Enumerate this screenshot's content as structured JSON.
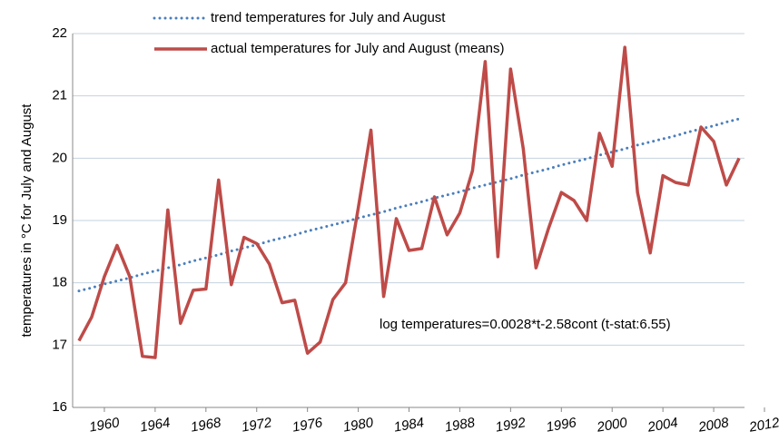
{
  "chart_data": {
    "type": "line",
    "y_label": "temperatures in °C for July and August",
    "annotation": "log temperatures=0.0028*t-2.58cont (t-stat:6.55)",
    "x": [
      1958,
      1959,
      1960,
      1961,
      1962,
      1963,
      1964,
      1965,
      1966,
      1967,
      1968,
      1969,
      1970,
      1971,
      1972,
      1973,
      1974,
      1975,
      1976,
      1977,
      1978,
      1979,
      1980,
      1981,
      1982,
      1983,
      1984,
      1985,
      1986,
      1987,
      1988,
      1989,
      1990,
      1991,
      1992,
      1993,
      1994,
      1995,
      1996,
      1997,
      1998,
      1999,
      2000,
      2001,
      2002,
      2003,
      2004,
      2005,
      2006,
      2007,
      2008,
      2009,
      2010
    ],
    "series": [
      {
        "name": "trend temperatures for July and August",
        "color": "#4a7ebb",
        "style": "dotted",
        "values": [
          17.87,
          17.92,
          17.98,
          18.03,
          18.08,
          18.14,
          18.19,
          18.24,
          18.29,
          18.35,
          18.4,
          18.45,
          18.51,
          18.56,
          18.61,
          18.67,
          18.72,
          18.77,
          18.83,
          18.88,
          18.93,
          18.98,
          19.04,
          19.09,
          19.14,
          19.2,
          19.25,
          19.3,
          19.36,
          19.41,
          19.46,
          19.52,
          19.57,
          19.62,
          19.67,
          19.73,
          19.78,
          19.83,
          19.89,
          19.94,
          19.99,
          20.05,
          20.1,
          20.15,
          20.21,
          20.26,
          20.31,
          20.36,
          20.42,
          20.47,
          20.52,
          20.58,
          20.63
        ]
      },
      {
        "name": "actual temperatures for July and August (means)",
        "color": "#be4b48",
        "style": "solid",
        "values": [
          17.07,
          17.45,
          18.1,
          18.6,
          18.1,
          16.82,
          16.8,
          19.17,
          17.35,
          17.88,
          17.9,
          19.65,
          17.97,
          18.73,
          18.63,
          18.3,
          17.68,
          17.72,
          16.87,
          17.05,
          17.73,
          18.0,
          19.2,
          20.45,
          17.78,
          19.03,
          18.52,
          18.55,
          19.38,
          18.77,
          19.12,
          19.8,
          21.55,
          18.42,
          21.43,
          20.15,
          18.24,
          18.88,
          19.45,
          19.32,
          19.0,
          20.4,
          19.87,
          21.78,
          19.45,
          18.48,
          19.72,
          19.61,
          19.57,
          20.5,
          20.27,
          19.57,
          20.0
        ]
      }
    ],
    "xlim": [
      1957.5,
      2012
    ],
    "xticks": [
      1960,
      1964,
      1968,
      1972,
      1976,
      1980,
      1984,
      1988,
      1992,
      1996,
      2000,
      2004,
      2008,
      2012
    ],
    "ylim": [
      16,
      22
    ],
    "yticks": [
      16,
      17,
      18,
      19,
      20,
      21,
      22
    ],
    "grid": true,
    "legend": "top"
  }
}
